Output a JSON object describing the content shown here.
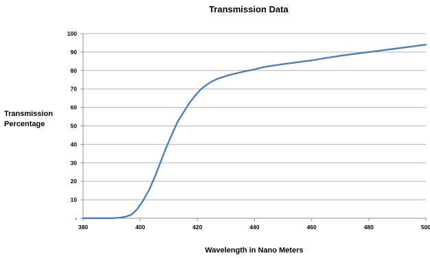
{
  "chart_data": {
    "type": "line",
    "title": "Transmission Data",
    "xlabel": "Wavelength in Nano Meters",
    "ylabel_lines": [
      "Transmission",
      "Percentage"
    ],
    "xlim": [
      380,
      500
    ],
    "ylim": [
      0,
      100
    ],
    "x_ticks": [
      380,
      400,
      420,
      440,
      460,
      480,
      500
    ],
    "x_tick_labels": [
      "380",
      "400",
      "420",
      "440",
      "460",
      "480",
      "500"
    ],
    "y_ticks": [
      0,
      10,
      20,
      30,
      40,
      50,
      60,
      70,
      80,
      90,
      100
    ],
    "y_tick_labels": [
      "-",
      "10",
      "20",
      "30",
      "40",
      "50",
      "60",
      "70",
      "80",
      "90",
      "100"
    ],
    "grid": "horizontal",
    "legend": "none",
    "series": [
      {
        "color": "#4a7ebb",
        "x": [
          380,
          385,
          390,
          393,
          395,
          397,
          399,
          401,
          403,
          405,
          407,
          409,
          411,
          413,
          415,
          417,
          419,
          421,
          423,
          425,
          427,
          429,
          431,
          433,
          435,
          437,
          439,
          441,
          443,
          445,
          447,
          450,
          455,
          460,
          465,
          470,
          475,
          480,
          485,
          490,
          495,
          500
        ],
        "y": [
          0,
          0,
          0,
          0.3,
          0.8,
          2,
          5,
          9.5,
          15,
          22,
          30,
          38,
          45,
          52,
          57,
          62,
          66,
          69.5,
          72,
          74,
          75.5,
          76.5,
          77.5,
          78.3,
          79,
          79.7,
          80.3,
          81,
          81.8,
          82.3,
          82.8,
          83.5,
          84.5,
          85.5,
          86.8,
          88,
          89,
          90,
          91,
          92,
          93,
          94
        ]
      }
    ]
  }
}
